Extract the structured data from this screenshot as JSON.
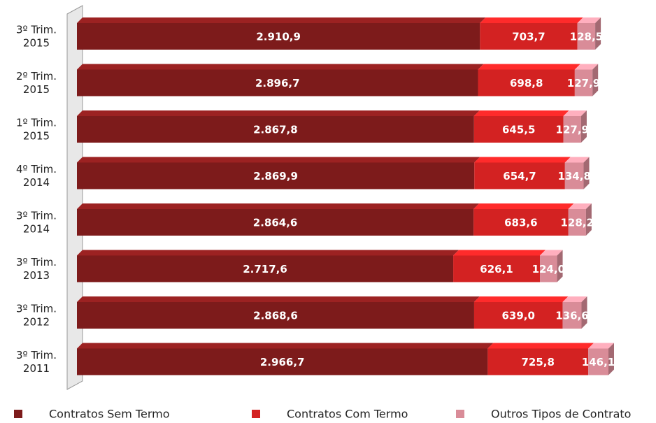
{
  "chart_data": {
    "type": "stacked-bar-horizontal",
    "categories": [
      "3º Trim.\n2015",
      "2º Trim.\n2015",
      "1º Trim.\n2015",
      "4º Trim.\n2014",
      "3º Trim.\n2014",
      "3º Trim.\n2013",
      "3º Trim.\n2012",
      "3º Trim.\n2011"
    ],
    "series": [
      {
        "name": "Contratos  Sem Termo",
        "color": "#7d1b1b",
        "values": [
          2910.9,
          2896.7,
          2867.8,
          2869.9,
          2864.6,
          2717.6,
          2868.6,
          2966.7
        ],
        "value_labels": [
          "2.910,9",
          "2.896,7",
          "2.867,8",
          "2.869,9",
          "2.864,6",
          "2.717,6",
          "2.868,6",
          "2.966,7"
        ]
      },
      {
        "name": "Contratos  Com Termo",
        "color": "#d32222",
        "values": [
          703.7,
          698.8,
          645.5,
          654.7,
          683.6,
          626.1,
          639.0,
          725.8
        ],
        "value_labels": [
          "703,7",
          "698,8",
          "645,5",
          "654,7",
          "683,6",
          "626,1",
          "639,0",
          "725,8"
        ]
      },
      {
        "name": "Outros Tipos de Contrato",
        "color": "#d98c98",
        "values": [
          128.5,
          127.9,
          127.9,
          134.8,
          128.2,
          124.0,
          136.6,
          146.1
        ],
        "value_labels": [
          "128,5",
          "127,9",
          "127,9",
          "134,8",
          "128,2",
          "124,0",
          "136,6",
          "146,1"
        ]
      }
    ]
  }
}
